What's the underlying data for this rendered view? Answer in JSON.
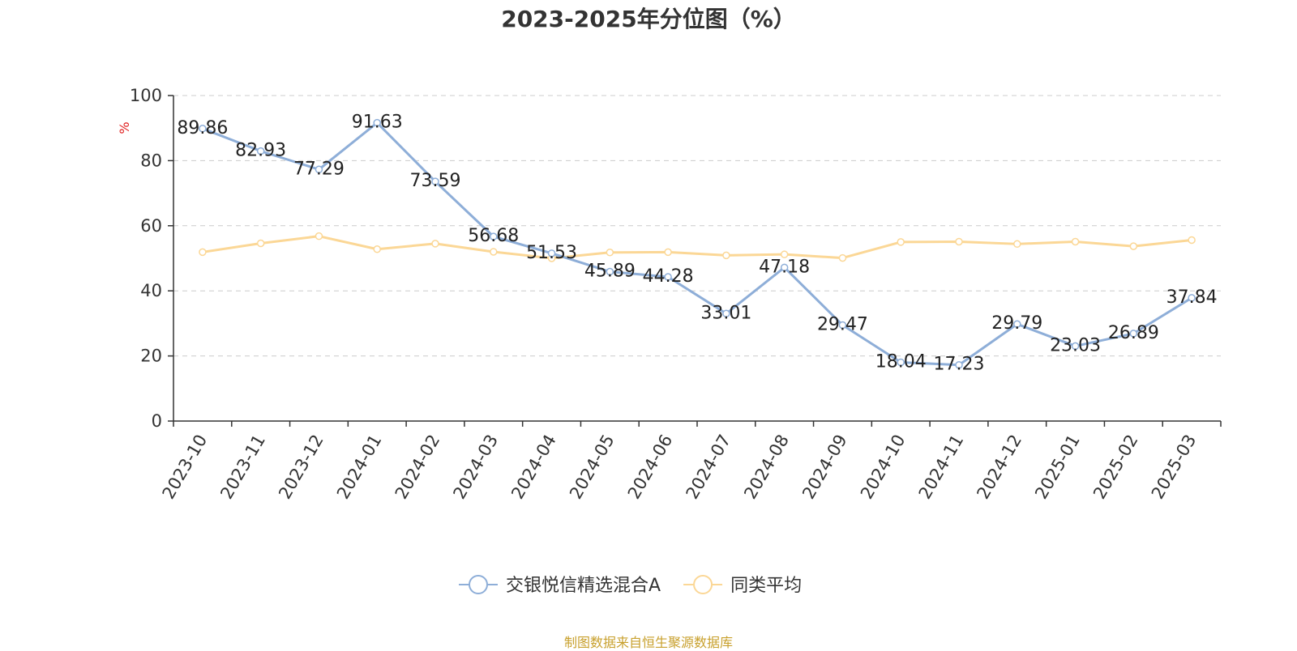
{
  "chart_data": {
    "type": "line",
    "title": "2023-2025年分位图（%）",
    "ylabel": "%",
    "xlabel": "",
    "ylim": [
      0,
      100
    ],
    "yticks": [
      0,
      20,
      40,
      60,
      80,
      100
    ],
    "grid": true,
    "legend_position": "bottom-center",
    "categories": [
      "2023-10",
      "2023-11",
      "2023-12",
      "2024-01",
      "2024-02",
      "2024-03",
      "2024-04",
      "2024-05",
      "2024-06",
      "2024-07",
      "2024-08",
      "2024-09",
      "2024-10",
      "2024-11",
      "2024-12",
      "2025-01",
      "2025-02",
      "2025-03"
    ],
    "series": [
      {
        "name": "交银悦信精选混合A",
        "color": "#8eaed8",
        "show_labels": true,
        "values": [
          89.86,
          82.93,
          77.29,
          91.63,
          73.59,
          56.68,
          51.53,
          45.89,
          44.28,
          33.01,
          47.18,
          29.47,
          18.04,
          17.23,
          29.79,
          23.03,
          26.89,
          37.84
        ]
      },
      {
        "name": "同类平均",
        "color": "#fbd796",
        "show_labels": false,
        "values": [
          51.9,
          54.6,
          56.8,
          52.8,
          54.5,
          52.0,
          50.0,
          51.8,
          51.9,
          50.9,
          51.2,
          50.1,
          55.0,
          55.1,
          54.4,
          55.1,
          53.7,
          55.6
        ]
      }
    ],
    "source": "制图数据来自恒生聚源数据库"
  }
}
